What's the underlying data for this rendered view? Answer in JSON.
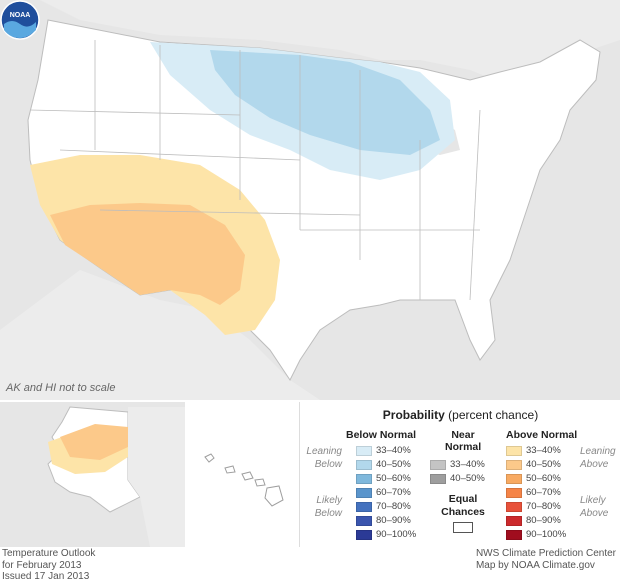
{
  "map_note": "AK and HI not to scale",
  "legend": {
    "title_bold": "Probability",
    "title_rest": " (percent chance)",
    "below_header": "Below Normal",
    "near_header_1": "Near",
    "near_header_2": "Normal",
    "above_header": "Above Normal",
    "leaning_below_1": "Leaning",
    "leaning_below_2": "Below",
    "likely_below_1": "Likely",
    "likely_below_2": "Below",
    "leaning_above_1": "Leaning",
    "leaning_above_2": "Above",
    "likely_above_1": "Likely",
    "likely_above_2": "Above",
    "equal_1": "Equal",
    "equal_2": "Chances",
    "below": [
      {
        "label": "33–40%",
        "color": "#d8ecf6"
      },
      {
        "label": "40–50%",
        "color": "#b2d8ec"
      },
      {
        "label": "50–60%",
        "color": "#7fb8dc"
      },
      {
        "label": "60–70%",
        "color": "#5a95cc"
      },
      {
        "label": "70–80%",
        "color": "#4472bf"
      },
      {
        "label": "80–90%",
        "color": "#3a55ae"
      },
      {
        "label": "90–100%",
        "color": "#2b3a96"
      }
    ],
    "near": [
      {
        "label": "33–40%",
        "color": "#c4c4c4"
      },
      {
        "label": "40–50%",
        "color": "#9e9e9e"
      }
    ],
    "above": [
      {
        "label": "33–40%",
        "color": "#fde4a8"
      },
      {
        "label": "40–50%",
        "color": "#fcc98a"
      },
      {
        "label": "50–60%",
        "color": "#f8aa62"
      },
      {
        "label": "60–70%",
        "color": "#f58447"
      },
      {
        "label": "70–80%",
        "color": "#e8513a"
      },
      {
        "label": "80–90%",
        "color": "#cc2a2c"
      },
      {
        "label": "90–100%",
        "color": "#a00d1e"
      }
    ]
  },
  "footer_left": [
    "Temperature Outlook",
    "for February 2013",
    "Issued 17 Jan 2013"
  ],
  "footer_right": [
    "NWS Climate Prediction Center",
    "Map by NOAA Climate.gov"
  ],
  "logo_text": "NOAA"
}
